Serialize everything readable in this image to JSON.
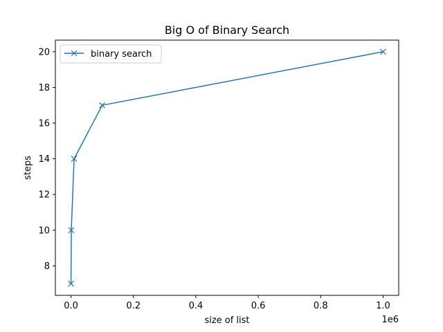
{
  "chart_data": {
    "type": "line",
    "title": "Big O of Binary Search",
    "xlabel": "size of list",
    "ylabel": "steps",
    "x_offset_label": "1e6",
    "xlim": [
      -50000,
      1050000
    ],
    "ylim": [
      6.35,
      20.65
    ],
    "xticks": [
      0,
      200000,
      400000,
      600000,
      800000,
      1000000
    ],
    "xtick_labels": [
      "0.0",
      "0.2",
      "0.4",
      "0.6",
      "0.8",
      "1.0"
    ],
    "yticks": [
      8,
      10,
      12,
      14,
      16,
      18,
      20
    ],
    "ytick_labels": [
      "8",
      "10",
      "12",
      "14",
      "16",
      "18",
      "20"
    ],
    "grid": false,
    "legend_position": "upper-left",
    "series": [
      {
        "name": "binary search",
        "color": "#1f77b4",
        "marker": "x",
        "x": [
          100,
          1000,
          10000,
          100000,
          1000000
        ],
        "y": [
          7,
          10,
          14,
          17,
          20
        ]
      }
    ]
  }
}
